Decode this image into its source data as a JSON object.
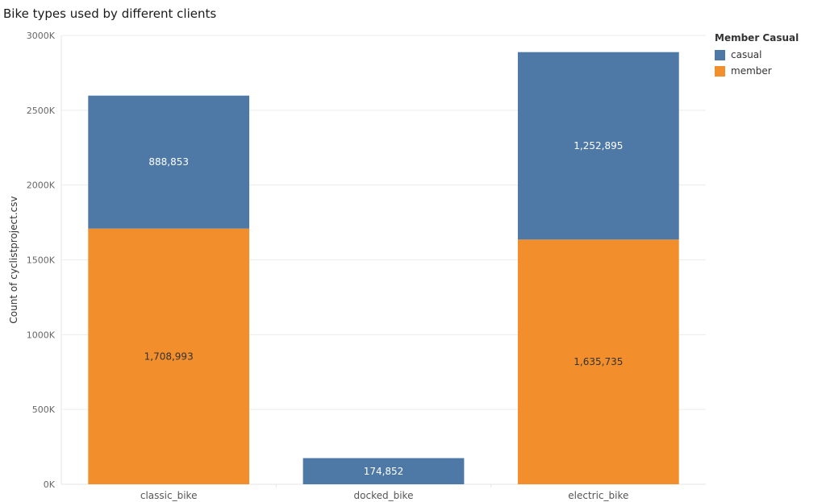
{
  "chart_data": {
    "type": "bar",
    "stacked": true,
    "title": "Bike types used by different clients",
    "xlabel": "",
    "ylabel": "Count of cyclistproject.csv",
    "ylim": [
      0,
      3000000
    ],
    "yticks": [
      0,
      500000,
      1000000,
      1500000,
      2000000,
      2500000,
      3000000
    ],
    "ytick_labels": [
      "0K",
      "500K",
      "1000K",
      "1500K",
      "2000K",
      "2500K",
      "3000K"
    ],
    "categories": [
      "classic_bike",
      "docked_bike",
      "electric_bike"
    ],
    "series": [
      {
        "name": "member",
        "color": "#f28e2b",
        "label_color": "#333333",
        "values": [
          1708993,
          0,
          1635735
        ],
        "labels": [
          "1,708,993",
          "",
          "1,635,735"
        ]
      },
      {
        "name": "casual",
        "color": "#4e79a7",
        "label_color": "#ffffff",
        "values": [
          888853,
          174852,
          1252895
        ],
        "labels": [
          "888,853",
          "174,852",
          "1,252,895"
        ]
      }
    ],
    "grid": true,
    "legend": {
      "title": "Member Casual",
      "placement": "right",
      "entries": [
        "casual",
        "member"
      ]
    }
  }
}
